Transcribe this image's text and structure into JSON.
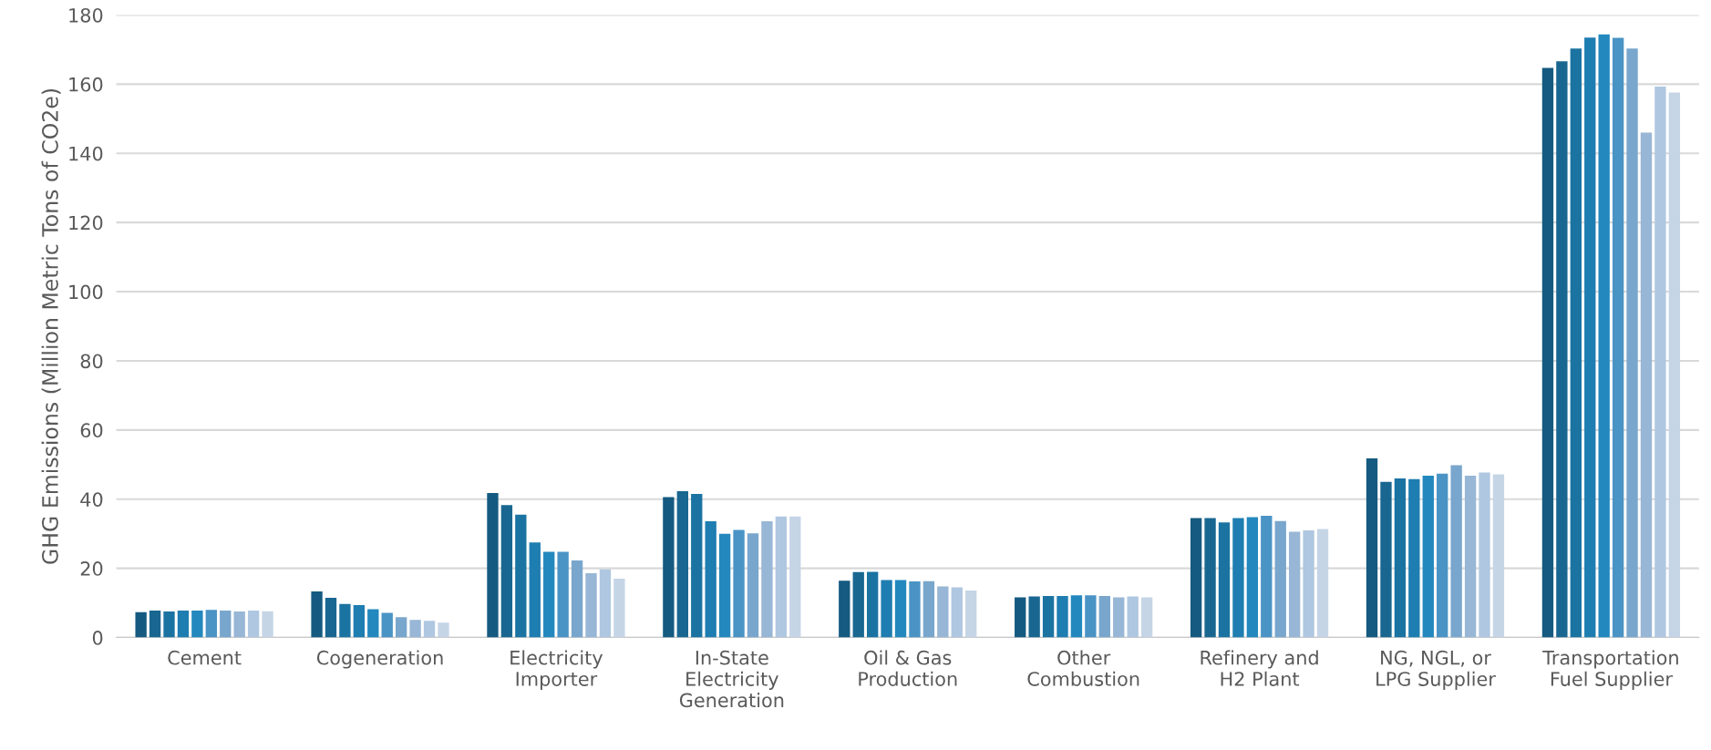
{
  "chart_data": {
    "type": "bar",
    "ylabel": "GHG Emissions (Million Metric Tons of CO2e)",
    "categories": [
      "Cement",
      "Cogeneration",
      "Electricity\nImporter",
      "In-State\nElectricity\nGeneration",
      "Oil & Gas\nProduction",
      "Other\nCombustion",
      "Refinery and\nH2 Plant",
      "NG, NGL, or\nLPG Supplier",
      "Transportation\nFuel Supplier"
    ],
    "series": [
      {
        "color": "#155a80",
        "values": [
          7.3,
          13.3,
          41.8,
          40.6,
          16.4,
          11.6,
          34.5,
          51.8,
          164.7
        ]
      },
      {
        "color": "#196791",
        "values": [
          7.8,
          11.5,
          38.3,
          42.3,
          18.9,
          11.9,
          34.5,
          45.0,
          166.6
        ]
      },
      {
        "color": "#1b73a2",
        "values": [
          7.5,
          9.7,
          35.5,
          41.5,
          19.0,
          12.0,
          33.3,
          46.0,
          170.3
        ]
      },
      {
        "color": "#1e7db1",
        "values": [
          7.8,
          9.4,
          27.5,
          33.6,
          16.6,
          12.0,
          34.5,
          45.8,
          173.5
        ]
      },
      {
        "color": "#2388be",
        "values": [
          7.8,
          8.2,
          24.8,
          30.0,
          16.6,
          12.2,
          34.8,
          46.8,
          174.4
        ]
      },
      {
        "color": "#4a94c5",
        "values": [
          8.0,
          7.1,
          24.8,
          31.1,
          16.2,
          12.2,
          35.2,
          47.4,
          173.4
        ]
      },
      {
        "color": "#79a6cc",
        "values": [
          7.8,
          5.9,
          22.3,
          30.1,
          16.3,
          12.0,
          33.7,
          49.8,
          170.3
        ]
      },
      {
        "color": "#98b6d5",
        "values": [
          7.5,
          5.1,
          18.6,
          33.6,
          14.8,
          11.6,
          30.6,
          46.8,
          146.0
        ]
      },
      {
        "color": "#afc7e0",
        "values": [
          7.8,
          4.8,
          19.7,
          35.0,
          14.5,
          11.9,
          31.0,
          47.7,
          159.3
        ]
      },
      {
        "color": "#c5d5e6",
        "values": [
          7.6,
          4.3,
          17.0,
          35.0,
          13.6,
          11.6,
          31.4,
          47.2,
          157.6
        ]
      }
    ],
    "ylim": [
      0,
      180
    ],
    "yticks": [
      0,
      20,
      40,
      60,
      80,
      100,
      120,
      140,
      160,
      180
    ],
    "grid": "y"
  }
}
